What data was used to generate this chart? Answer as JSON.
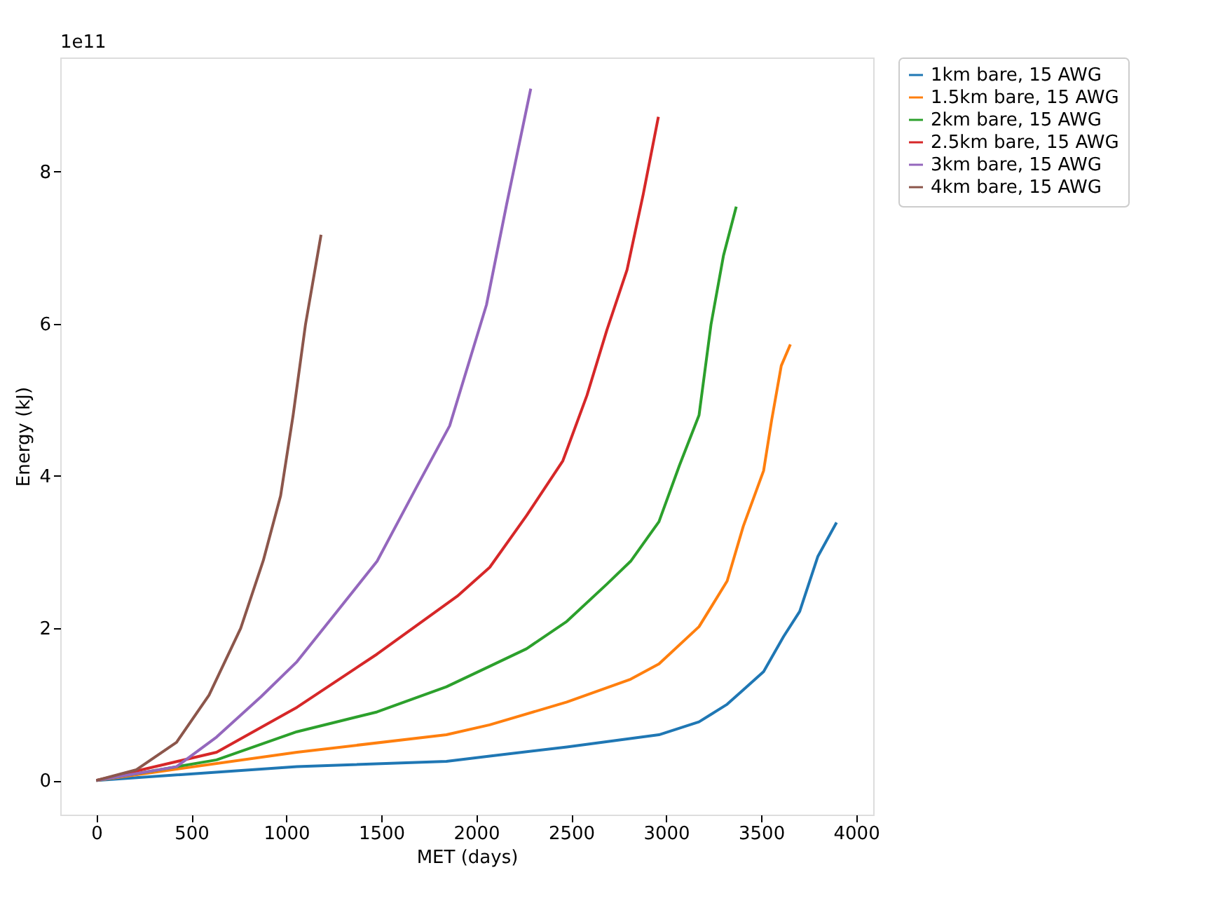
{
  "chart_data": {
    "type": "line",
    "xlabel": "MET (days)",
    "ylabel": "Energy (kJ)",
    "annotations": [
      "1e11"
    ],
    "xlim": [
      -190,
      4090
    ],
    "ylim": [
      -0.45,
      9.5
    ],
    "xticks": [
      0,
      500,
      1000,
      1500,
      2000,
      2500,
      3000,
      3500,
      4000
    ],
    "yticks": [
      0,
      2,
      4,
      6,
      8
    ],
    "grid": false,
    "legend": "right",
    "line_style": "solid",
    "marker": "none",
    "series": [
      {
        "name": "1km bare, 15 AWG",
        "color": "#1f77b4",
        "x": [
          0,
          1056,
          1843,
          2071,
          2477,
          2962,
          3173,
          3321,
          3406,
          3513,
          3618,
          3703,
          3798,
          3897
        ],
        "values": [
          0,
          0.18,
          0.25,
          0.32,
          0.44,
          0.6,
          0.77,
          1.0,
          1.19,
          1.43,
          1.89,
          2.22,
          2.94,
          3.39
        ]
      },
      {
        "name": "1.5km bare, 15 AWG",
        "color": "#ff7f0e",
        "x": [
          0,
          1056,
          1843,
          2071,
          2477,
          2813,
          2962,
          3173,
          3321,
          3406,
          3513,
          3555,
          3606,
          3654
        ],
        "values": [
          0,
          0.37,
          0.6,
          0.73,
          1.03,
          1.33,
          1.53,
          2.02,
          2.62,
          3.34,
          4.07,
          4.73,
          5.45,
          5.73
        ]
      },
      {
        "name": "2km bare, 15 AWG",
        "color": "#2ca02c",
        "x": [
          0,
          633,
          1056,
          1478,
          1843,
          2071,
          2265,
          2477,
          2688,
          2813,
          2962,
          3070,
          3173,
          3236,
          3302,
          3369
        ],
        "values": [
          0,
          0.27,
          0.64,
          0.9,
          1.23,
          1.5,
          1.73,
          2.09,
          2.58,
          2.88,
          3.4,
          4.14,
          4.8,
          5.99,
          6.9,
          7.54
        ]
      },
      {
        "name": "2.5km bare, 15 AWG",
        "color": "#d62728",
        "x": [
          0,
          633,
          1056,
          1478,
          1900,
          2071,
          2265,
          2456,
          2583,
          2688,
          2794,
          2879,
          2959
        ],
        "values": [
          0,
          0.37,
          0.96,
          1.66,
          2.42,
          2.8,
          3.48,
          4.2,
          5.06,
          5.92,
          6.71,
          7.7,
          8.72
        ]
      },
      {
        "name": "3km bare, 15 AWG",
        "color": "#9467bd",
        "x": [
          0,
          422,
          633,
          867,
          1056,
          1267,
          1478,
          1689,
          1860,
          2054,
          2160,
          2287
        ],
        "values": [
          0,
          0.18,
          0.57,
          1.1,
          1.56,
          2.22,
          2.88,
          3.87,
          4.66,
          6.25,
          7.57,
          9.09
        ]
      },
      {
        "name": "4km bare, 15 AWG",
        "color": "#8c564b",
        "x": [
          0,
          211,
          422,
          593,
          760,
          879,
          970,
          1036,
          1101,
          1183
        ],
        "values": [
          0,
          0.14,
          0.5,
          1.12,
          2.0,
          2.89,
          3.74,
          4.8,
          5.99,
          7.17
        ]
      }
    ]
  }
}
